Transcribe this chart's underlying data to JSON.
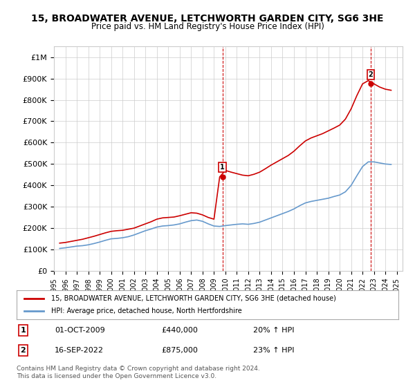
{
  "title": "15, BROADWATER AVENUE, LETCHWORTH GARDEN CITY, SG6 3HE",
  "subtitle": "Price paid vs. HM Land Registry's House Price Index (HPI)",
  "ylabel_ticks": [
    "£0",
    "£100K",
    "£200K",
    "£300K",
    "£400K",
    "£500K",
    "£600K",
    "£700K",
    "£800K",
    "£900K",
    "£1M"
  ],
  "ytick_values": [
    0,
    100000,
    200000,
    300000,
    400000,
    500000,
    600000,
    700000,
    800000,
    900000,
    1000000
  ],
  "ylim": [
    0,
    1050000
  ],
  "xlim_start": 1995.0,
  "xlim_end": 2025.5,
  "xlabel_years": [
    1995,
    1996,
    1997,
    1998,
    1999,
    2000,
    2001,
    2002,
    2003,
    2004,
    2005,
    2006,
    2007,
    2008,
    2009,
    2010,
    2011,
    2012,
    2013,
    2014,
    2015,
    2016,
    2017,
    2018,
    2019,
    2020,
    2021,
    2022,
    2023,
    2024,
    2025
  ],
  "sale1_x": 2009.75,
  "sale1_y": 440000,
  "sale1_label": "1",
  "sale2_x": 2022.71,
  "sale2_y": 875000,
  "sale2_label": "2",
  "red_line_color": "#cc0000",
  "blue_line_color": "#6699cc",
  "marker_box_color": "#cc0000",
  "grid_color": "#cccccc",
  "bg_color": "#ffffff",
  "legend_label_red": "15, BROADWATER AVENUE, LETCHWORTH GARDEN CITY, SG6 3HE (detached house)",
  "legend_label_blue": "HPI: Average price, detached house, North Hertfordshire",
  "annotation1_date": "01-OCT-2009",
  "annotation1_price": "£440,000",
  "annotation1_hpi": "20% ↑ HPI",
  "annotation2_date": "16-SEP-2022",
  "annotation2_price": "£875,000",
  "annotation2_hpi": "23% ↑ HPI",
  "footer": "Contains HM Land Registry data © Crown copyright and database right 2024.\nThis data is licensed under the Open Government Licence v3.0.",
  "hpi_years": [
    1995.5,
    1996.0,
    1996.5,
    1997.0,
    1997.5,
    1998.0,
    1998.5,
    1999.0,
    1999.5,
    2000.0,
    2000.5,
    2001.0,
    2001.5,
    2002.0,
    2002.5,
    2003.0,
    2003.5,
    2004.0,
    2004.5,
    2005.0,
    2005.5,
    2006.0,
    2006.5,
    2007.0,
    2007.5,
    2008.0,
    2008.5,
    2009.0,
    2009.5,
    2010.0,
    2010.5,
    2011.0,
    2011.5,
    2012.0,
    2012.5,
    2013.0,
    2013.5,
    2014.0,
    2014.5,
    2015.0,
    2015.5,
    2016.0,
    2016.5,
    2017.0,
    2017.5,
    2018.0,
    2018.5,
    2019.0,
    2019.5,
    2020.0,
    2020.5,
    2021.0,
    2021.5,
    2022.0,
    2022.5,
    2023.0,
    2023.5,
    2024.0,
    2024.5
  ],
  "hpi_values": [
    105000,
    108000,
    112000,
    116000,
    118000,
    122000,
    128000,
    135000,
    143000,
    150000,
    152000,
    155000,
    160000,
    168000,
    178000,
    188000,
    196000,
    205000,
    210000,
    212000,
    215000,
    220000,
    228000,
    235000,
    238000,
    232000,
    220000,
    210000,
    208000,
    212000,
    215000,
    218000,
    220000,
    218000,
    222000,
    228000,
    238000,
    248000,
    258000,
    268000,
    278000,
    290000,
    305000,
    318000,
    325000,
    330000,
    335000,
    340000,
    348000,
    355000,
    370000,
    400000,
    445000,
    488000,
    510000,
    510000,
    505000,
    500000,
    498000
  ],
  "red_years": [
    1995.5,
    1996.0,
    1996.5,
    1997.0,
    1997.5,
    1998.0,
    1998.5,
    1999.0,
    1999.5,
    2000.0,
    2000.5,
    2001.0,
    2001.5,
    2002.0,
    2002.5,
    2003.0,
    2003.5,
    2004.0,
    2004.5,
    2005.0,
    2005.5,
    2006.0,
    2006.5,
    2007.0,
    2007.5,
    2008.0,
    2008.5,
    2009.0,
    2009.5,
    2010.0,
    2010.5,
    2011.0,
    2011.5,
    2012.0,
    2012.5,
    2013.0,
    2013.5,
    2014.0,
    2014.5,
    2015.0,
    2015.5,
    2016.0,
    2016.5,
    2017.0,
    2017.5,
    2018.0,
    2018.5,
    2019.0,
    2019.5,
    2020.0,
    2020.5,
    2021.0,
    2021.5,
    2022.0,
    2022.5,
    2023.0,
    2023.5,
    2024.0,
    2024.5
  ],
  "red_values": [
    130000,
    133000,
    138000,
    143000,
    148000,
    155000,
    162000,
    170000,
    178000,
    185000,
    188000,
    190000,
    195000,
    200000,
    210000,
    220000,
    230000,
    242000,
    248000,
    250000,
    252000,
    258000,
    265000,
    272000,
    270000,
    262000,
    250000,
    242000,
    440000,
    470000,
    462000,
    455000,
    448000,
    445000,
    452000,
    462000,
    478000,
    495000,
    510000,
    525000,
    540000,
    560000,
    585000,
    608000,
    622000,
    632000,
    642000,
    655000,
    668000,
    682000,
    710000,
    758000,
    820000,
    875000,
    890000,
    875000,
    860000,
    850000,
    845000
  ]
}
